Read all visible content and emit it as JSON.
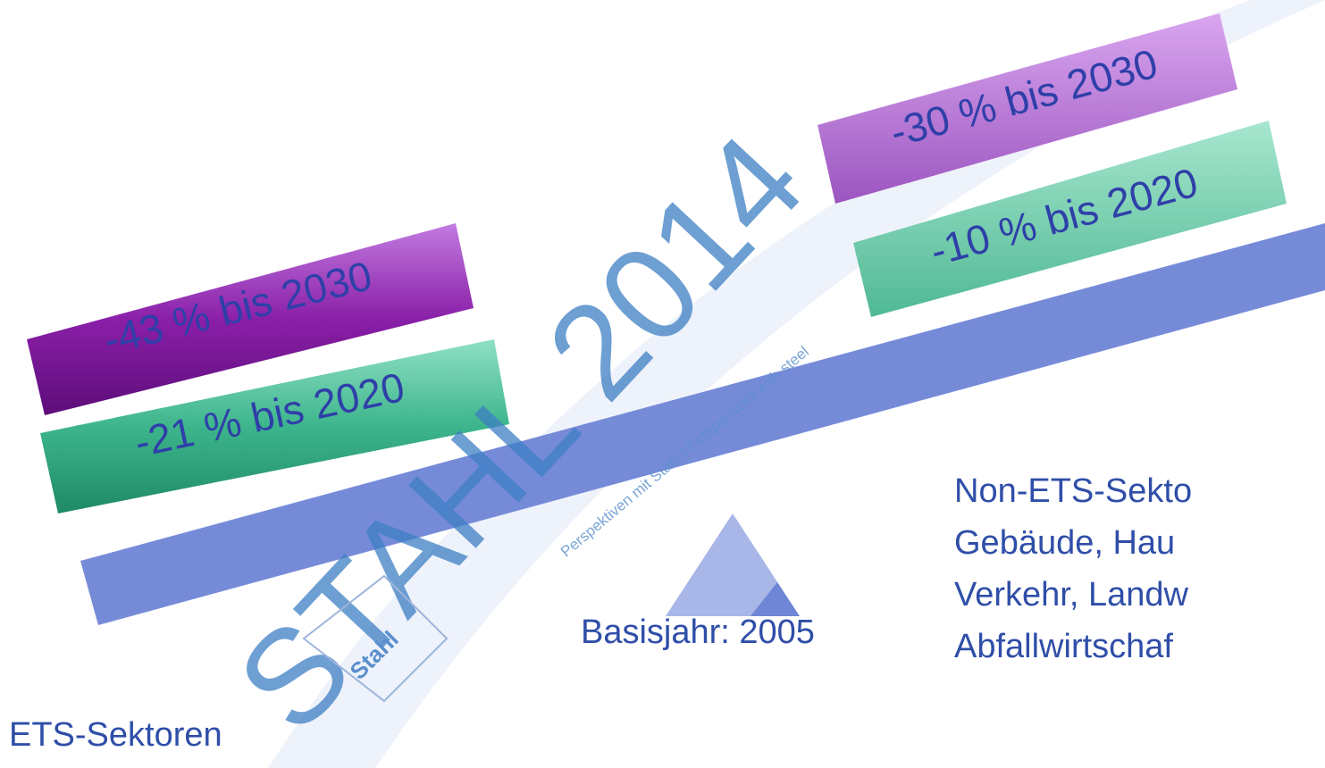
{
  "left_targets": [
    "-43 % bis 2030",
    "-21 % bis 2020"
  ],
  "right_targets": [
    "-30 % bis 2030",
    "-10 % bis 2020"
  ],
  "base_year": "Basisjahr: 2005",
  "left_label": "ETS-Sektoren",
  "right_label": [
    "Non-ETS-Sekto",
    "Gebäude, Hau",
    "Verkehr, Landw",
    "Abfallwirtschaf"
  ],
  "watermark": {
    "title": "STAHL 2014",
    "tagline": "Perspektiven mit Stahl | Perspectives with steel",
    "logo": "Stahl"
  }
}
